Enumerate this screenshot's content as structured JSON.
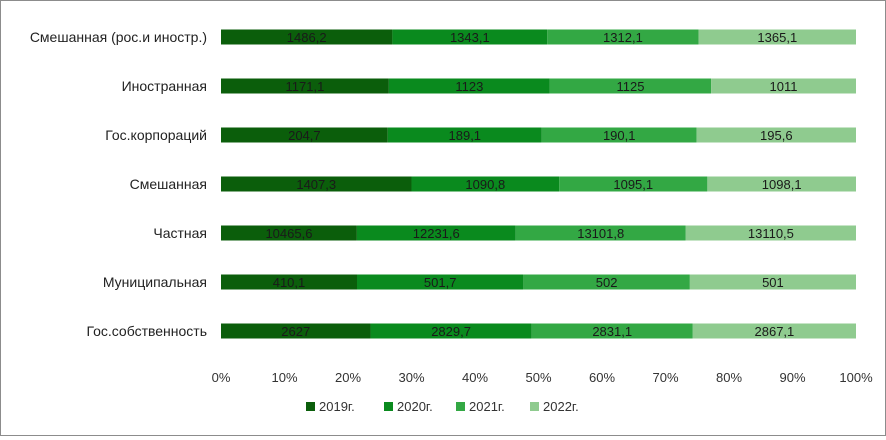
{
  "chart_data": {
    "type": "bar",
    "orientation": "horizontal",
    "stacking": "percent",
    "categories": [
      "Смешанная (рос.и иностр.)",
      "Иностранная",
      "Гос.корпораций",
      "Смешанная",
      "Частная",
      "Муниципальная",
      "Гос.собственность"
    ],
    "series": [
      {
        "name": "2019г.",
        "color": "#0b5e0b",
        "values": [
          1486.2,
          1171.1,
          204.7,
          1407.3,
          10465.6,
          410.1,
          2627
        ]
      },
      {
        "name": "2020г.",
        "color": "#0a8a1e",
        "values": [
          1343.1,
          1123,
          189.1,
          1090.8,
          12231.6,
          501.7,
          2829.7
        ]
      },
      {
        "name": "2021г.",
        "color": "#33a844",
        "values": [
          1312.1,
          1125,
          190.1,
          1095.1,
          13101.8,
          502,
          2831.1
        ]
      },
      {
        "name": "2022г.",
        "color": "#8fcb8f",
        "values": [
          1365.1,
          1011,
          195.6,
          1098.1,
          13110.5,
          501,
          2867.1
        ]
      }
    ],
    "data_labels": [
      [
        "1486,2",
        "1171,1",
        "204,7",
        "1407,3",
        "10465,6",
        "410,1",
        "2627"
      ],
      [
        "1343,1",
        "1123",
        "189,1",
        "1090,8",
        "12231,6",
        "501,7",
        "2829,7"
      ],
      [
        "1312,1",
        "1125",
        "190,1",
        "1095,1",
        "13101,8",
        "502",
        "2831,1"
      ],
      [
        "1365,1",
        "1011",
        "195,6",
        "1098,1",
        "13110,5",
        "501",
        "2867,1"
      ]
    ],
    "x_ticks": [
      "0%",
      "10%",
      "20%",
      "30%",
      "40%",
      "50%",
      "60%",
      "70%",
      "80%",
      "90%",
      "100%"
    ],
    "xlim": [
      0,
      100
    ],
    "grid": false,
    "legend_position": "bottom"
  }
}
